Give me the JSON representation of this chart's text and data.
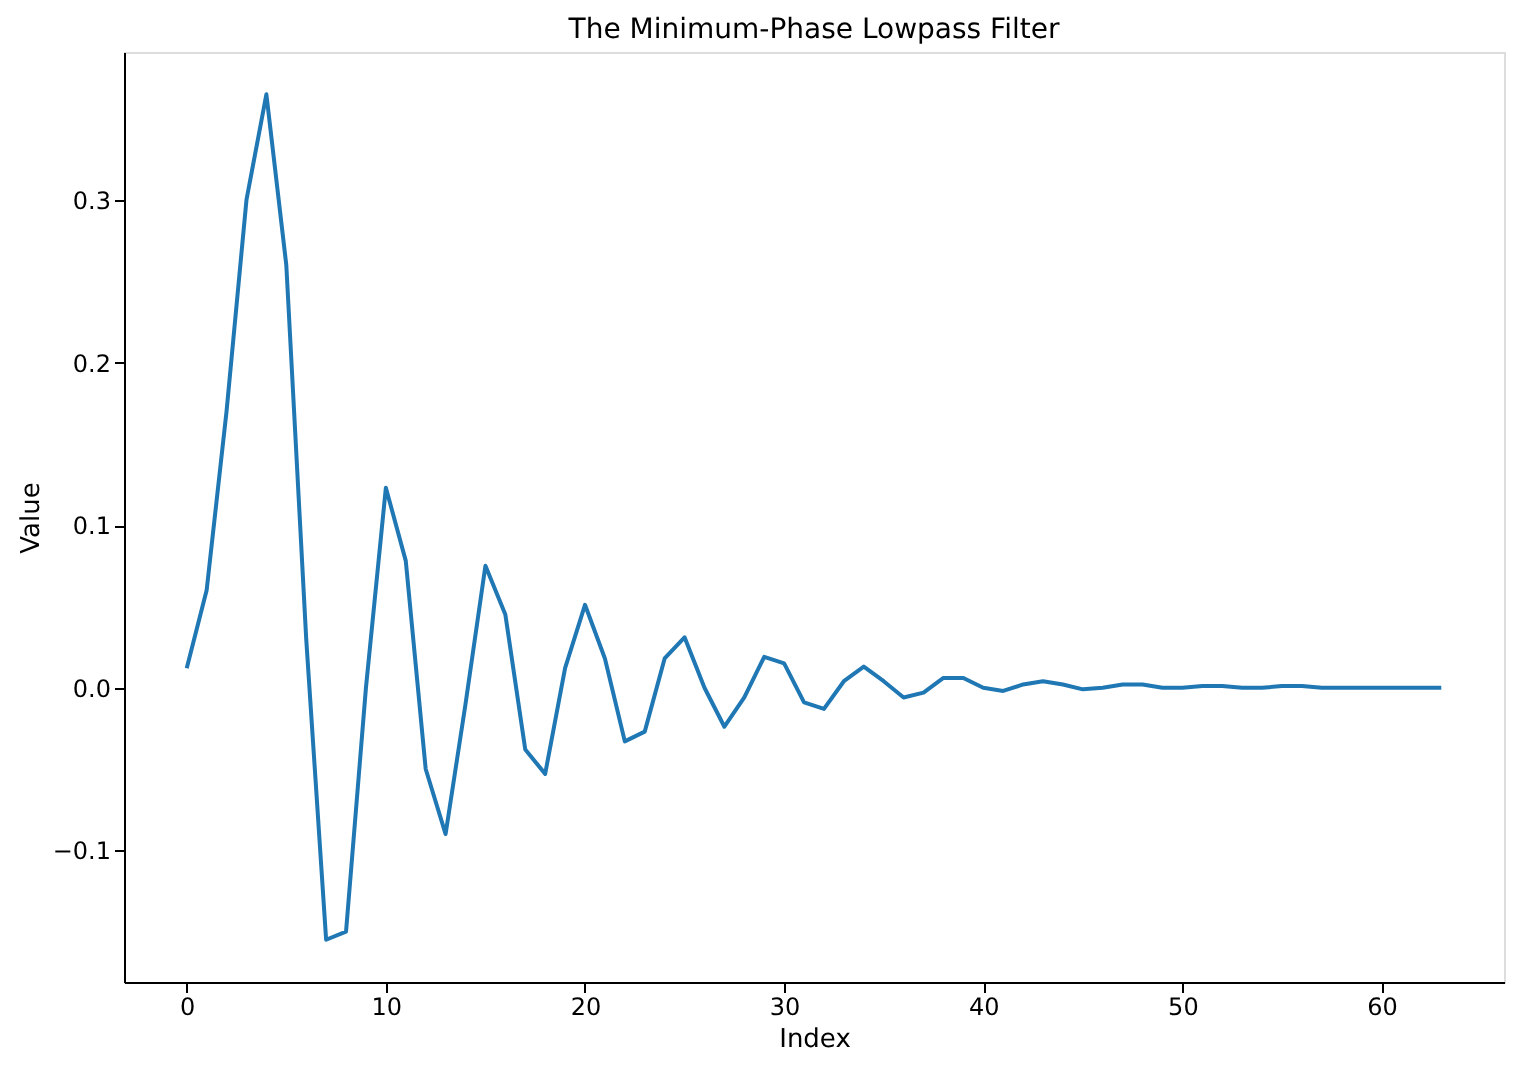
{
  "chart_data": {
    "type": "line",
    "title": "The Minimum-Phase Lowpass Filter",
    "xlabel": "Index",
    "ylabel": "Value",
    "x": [
      0,
      1,
      2,
      3,
      4,
      5,
      6,
      7,
      8,
      9,
      10,
      11,
      12,
      13,
      14,
      15,
      16,
      17,
      18,
      19,
      20,
      21,
      22,
      23,
      24,
      25,
      26,
      27,
      28,
      29,
      30,
      31,
      32,
      33,
      34,
      35,
      36,
      37,
      38,
      39,
      40,
      41,
      42,
      43,
      44,
      45,
      46,
      47,
      48,
      49,
      50,
      51,
      52,
      53,
      54,
      55,
      56,
      57,
      58,
      59,
      60,
      61,
      62,
      63
    ],
    "series": [
      {
        "color": "#1f77b4",
        "values": [
          0.012,
          0.06,
          0.17,
          0.3,
          0.365,
          0.26,
          0.03,
          -0.155,
          -0.15,
          0.0,
          0.123,
          0.078,
          -0.05,
          -0.09,
          -0.01,
          0.075,
          0.045,
          -0.038,
          -0.053,
          0.012,
          0.051,
          0.018,
          -0.033,
          -0.027,
          0.018,
          0.031,
          0.0,
          -0.024,
          -0.006,
          0.019,
          0.015,
          -0.009,
          -0.013,
          0.004,
          0.013,
          0.004,
          -0.006,
          -0.003,
          0.006,
          0.006,
          0.0,
          -0.002,
          0.002,
          0.004,
          0.002,
          -0.001,
          0.0,
          0.002,
          0.002,
          0.0,
          0.0,
          0.001,
          0.001,
          0.0,
          0.0,
          0.001,
          0.001,
          0.0,
          0.0,
          0.0,
          0.0,
          0.0,
          0.0,
          0.0
        ]
      }
    ],
    "xlim": [
      -3.15,
      66.15
    ],
    "ylim": [
      -0.181,
      0.391
    ],
    "xticks": [
      0,
      10,
      20,
      30,
      40,
      50,
      60
    ],
    "yticks": [
      -0.1,
      {
        "value": 0,
        "label": "0.0"
      },
      0.1,
      0.2,
      0.3
    ],
    "grid": false,
    "legend": false,
    "marker": "none",
    "line_style": "solid"
  }
}
